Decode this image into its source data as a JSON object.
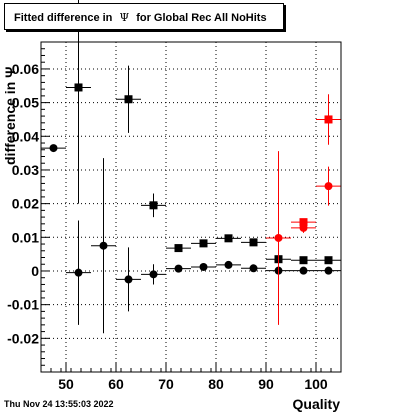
{
  "title": {
    "prefix": "Fitted difference in",
    "symbol": "Ψ",
    "suffix": "for Global Rec All NoHits"
  },
  "footer": {
    "timestamp": "Thu Nov 24 13:55:03 2022"
  },
  "chart_data": {
    "type": "scatter",
    "xlabel": "Quality",
    "ylabel": "difference in Ψ",
    "xlim": [
      45,
      105
    ],
    "ylim": [
      -0.03,
      0.068
    ],
    "x_ticks": [
      50,
      60,
      70,
      80,
      90,
      100
    ],
    "y_ticks": [
      -0.02,
      -0.01,
      0,
      0.01,
      0.02,
      0.03,
      0.04,
      0.05,
      0.06
    ],
    "x_tick_labels": [
      "50",
      "60",
      "70",
      "80",
      "90",
      "100"
    ],
    "y_tick_labels": [
      "-0.02",
      "-0.01",
      "0",
      "0.01",
      "0.02",
      "0.03",
      "0.04",
      "0.05",
      "0.06"
    ],
    "grid": true,
    "series": [
      {
        "marker": "square",
        "color": "#000000",
        "points": [
          {
            "x": 52.5,
            "xerr": 2.5,
            "y": 0.0545,
            "yerr": 0.0345
          },
          {
            "x": 62.5,
            "xerr": 2.5,
            "y": 0.051,
            "yerr": 0.01
          },
          {
            "x": 67.5,
            "xerr": 2.5,
            "y": 0.0195,
            "yerr": 0.0035
          },
          {
            "x": 72.5,
            "xerr": 2.5,
            "y": 0.0068,
            "yerr": 0.0008
          },
          {
            "x": 77.5,
            "xerr": 2.5,
            "y": 0.0082,
            "yerr": 0.0006
          },
          {
            "x": 82.5,
            "xerr": 2.5,
            "y": 0.0097,
            "yerr": 0.0005
          },
          {
            "x": 87.5,
            "xerr": 2.5,
            "y": 0.0085,
            "yerr": 0.0004
          },
          {
            "x": 92.5,
            "xerr": 2.5,
            "y": 0.0035,
            "yerr": 0.0003
          },
          {
            "x": 97.5,
            "xerr": 2.5,
            "y": 0.0032,
            "yerr": 0.0002
          },
          {
            "x": 102.5,
            "xerr": 2.5,
            "y": 0.0032,
            "yerr": 0.0002
          }
        ]
      },
      {
        "marker": "circle",
        "color": "#000000",
        "points": [
          {
            "x": 47.5,
            "xerr": 2.5,
            "y": 0.0365,
            "yerr": 0.0
          },
          {
            "x": 52.5,
            "xerr": 2.5,
            "y": -0.0005,
            "yerr": 0.0155
          },
          {
            "x": 57.5,
            "xerr": 2.5,
            "y": 0.0075,
            "yerr": 0.026
          },
          {
            "x": 62.5,
            "xerr": 2.5,
            "y": -0.0025,
            "yerr": 0.0095
          },
          {
            "x": 67.5,
            "xerr": 2.5,
            "y": -0.001,
            "yerr": 0.003
          },
          {
            "x": 72.5,
            "xerr": 2.5,
            "y": 0.0007,
            "yerr": 0.0008
          },
          {
            "x": 77.5,
            "xerr": 2.5,
            "y": 0.0012,
            "yerr": 0.0006
          },
          {
            "x": 82.5,
            "xerr": 2.5,
            "y": 0.0018,
            "yerr": 0.0005
          },
          {
            "x": 87.5,
            "xerr": 2.5,
            "y": 0.0008,
            "yerr": 0.0004
          },
          {
            "x": 92.5,
            "xerr": 2.5,
            "y": 0.0001,
            "yerr": 0.0003
          },
          {
            "x": 97.5,
            "xerr": 2.5,
            "y": 0.0001,
            "yerr": 0.0002
          },
          {
            "x": 102.5,
            "xerr": 2.5,
            "y": 0.0001,
            "yerr": 0.0002
          }
        ]
      },
      {
        "marker": "square",
        "color": "#ff0000",
        "points": [
          {
            "x": 97.5,
            "xerr": 2.5,
            "y": 0.0145,
            "yerr": 0.001
          },
          {
            "x": 102.5,
            "xerr": 2.5,
            "y": 0.045,
            "yerr": 0.0075
          }
        ]
      },
      {
        "marker": "circle",
        "color": "#ff0000",
        "points": [
          {
            "x": 92.5,
            "xerr": 2.5,
            "y": 0.0098,
            "yerr": 0.0258
          },
          {
            "x": 97.5,
            "xerr": 2.5,
            "y": 0.0128,
            "yerr": 0.0015
          },
          {
            "x": 102.5,
            "xerr": 2.5,
            "y": 0.0252,
            "yerr": 0.0058
          }
        ]
      }
    ]
  }
}
